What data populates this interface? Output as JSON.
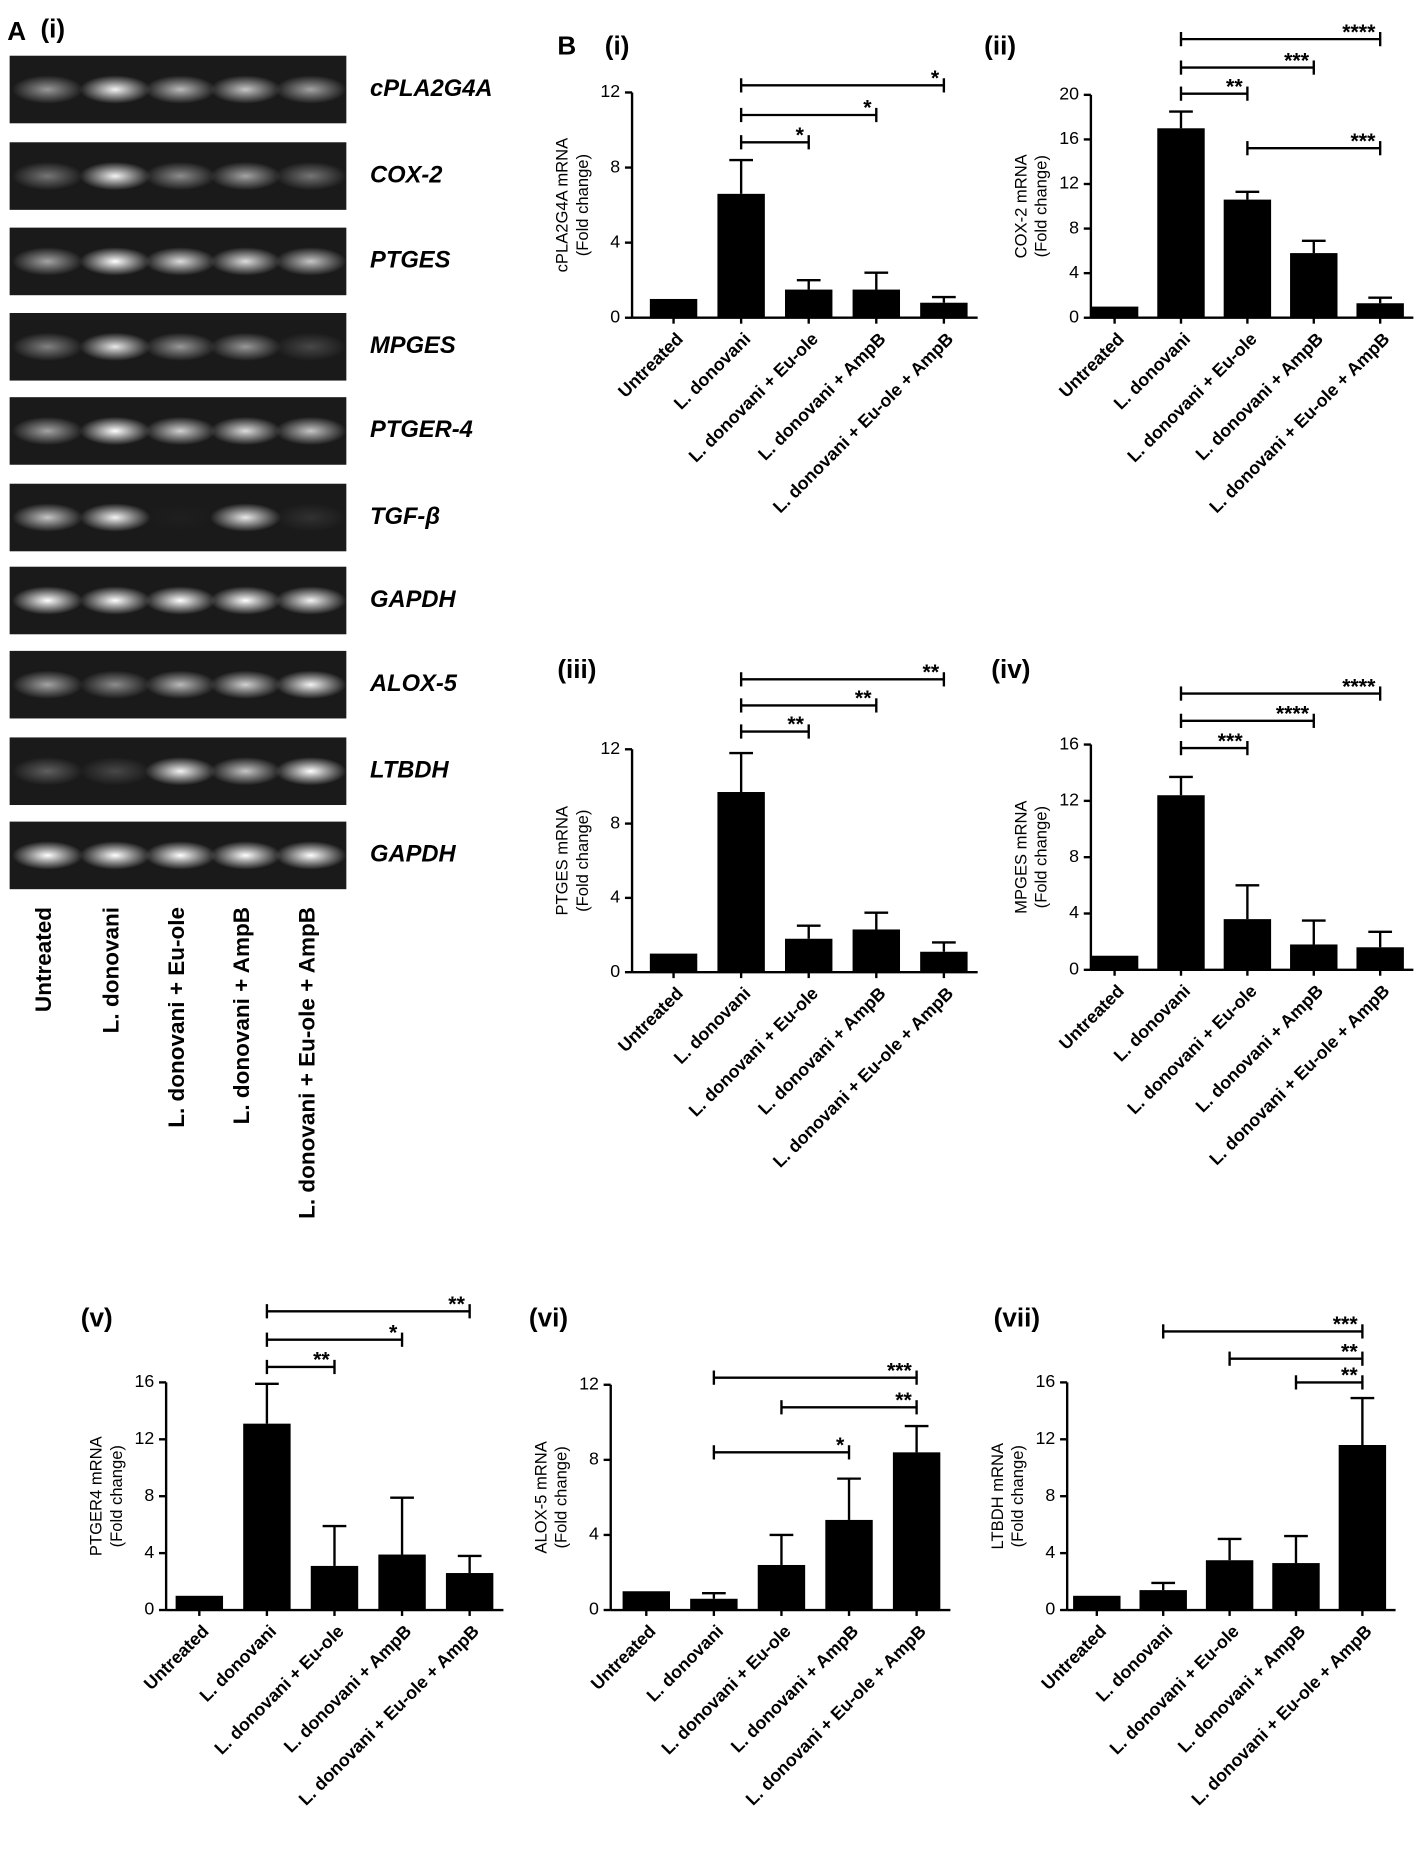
{
  "gel": {
    "panel": "A",
    "label": "(i)",
    "genes": [
      "cPLA2G4A",
      "COX-2",
      "PTGES",
      "MPGES",
      "PTGER-4",
      "TGF-β",
      "GAPDH",
      "ALOX-5",
      "LTBDH",
      "GAPDH"
    ],
    "lanes": [
      "Untreated",
      "L. donovani",
      "L. donovani + Eu-ole",
      "L. donovani + AmpB",
      "L. donovani + Eu-ole + AmpB"
    ]
  },
  "panel_b": "B",
  "chart_data": [
    {
      "type": "bar",
      "label": "(i)",
      "ylabel": [
        "cPLA2G4A mRNA",
        "(Fold change)"
      ],
      "categories": [
        "Untreated",
        "L. donovani",
        "L. donovani + Eu-ole",
        "L. donovani + AmpB",
        "L. donovani + Eu-ole + AmpB"
      ],
      "values": [
        1,
        6.6,
        1.5,
        1.5,
        0.8
      ],
      "errors": [
        0,
        1.8,
        0.5,
        0.9,
        0.3
      ],
      "color": "#000000",
      "ylim": [
        0,
        12
      ],
      "yticks": [
        0,
        4,
        8,
        12
      ],
      "annotations": [
        {
          "from": "L. donovani",
          "to": "L. donovani + Eu-ole + AmpB",
          "label": "*"
        },
        {
          "from": "L. donovani",
          "to": "L. donovani + AmpB",
          "label": "*"
        },
        {
          "from": "L. donovani",
          "to": "L. donovani + Eu-ole",
          "label": "*"
        }
      ]
    },
    {
      "type": "bar",
      "label": "(ii)",
      "ylabel": [
        "COX-2 mRNA",
        "(Fold change)"
      ],
      "categories": [
        "Untreated",
        "L. donovani",
        "L. donovani + Eu-ole",
        "L. donovani + AmpB",
        "L. donovani + Eu-ole + AmpB"
      ],
      "values": [
        1,
        17,
        10.6,
        5.8,
        1.3
      ],
      "errors": [
        0,
        1.5,
        0.7,
        1.1,
        0.5
      ],
      "color": "#000000",
      "ylim": [
        0,
        20
      ],
      "yticks": [
        0,
        4,
        8,
        12,
        16,
        20
      ],
      "annotations": [
        {
          "from": "L. donovani",
          "to": "L. donovani + Eu-ole + AmpB",
          "label": "****"
        },
        {
          "from": "L. donovani",
          "to": "L. donovani + AmpB",
          "label": "***"
        },
        {
          "from": "L. donovani",
          "to": "L. donovani + Eu-ole",
          "label": "**"
        },
        {
          "from": "L. donovani + Eu-ole",
          "to": "L. donovani + Eu-ole + AmpB",
          "label": "***"
        }
      ]
    },
    {
      "type": "bar",
      "label": "(iii)",
      "ylabel": [
        "PTGES mRNA",
        "(Fold change)"
      ],
      "categories": [
        "Untreated",
        "L. donovani",
        "L. donovani + Eu-ole",
        "L. donovani + AmpB",
        "L. donovani + Eu-ole + AmpB"
      ],
      "values": [
        1,
        9.7,
        1.8,
        2.3,
        1.1
      ],
      "errors": [
        0,
        2.1,
        0.7,
        0.9,
        0.5
      ],
      "color": "#000000",
      "ylim": [
        0,
        12
      ],
      "yticks": [
        0,
        4,
        8,
        12
      ],
      "annotations": [
        {
          "from": "L. donovani",
          "to": "L. donovani + Eu-ole + AmpB",
          "label": "**"
        },
        {
          "from": "L. donovani",
          "to": "L. donovani + AmpB",
          "label": "**"
        },
        {
          "from": "L. donovani",
          "to": "L. donovani + Eu-ole",
          "label": "**"
        }
      ]
    },
    {
      "type": "bar",
      "label": "(iv)",
      "ylabel": [
        "MPGES mRNA",
        "(Fold change)"
      ],
      "categories": [
        "Untreated",
        "L. donovani",
        "L. donovani + Eu-ole",
        "L. donovani + AmpB",
        "L. donovani + Eu-ole + AmpB"
      ],
      "values": [
        1,
        12.4,
        3.6,
        1.8,
        1.6
      ],
      "errors": [
        0,
        1.3,
        2.4,
        1.7,
        1.1
      ],
      "color": "#000000",
      "ylim": [
        0,
        16
      ],
      "yticks": [
        0,
        4,
        8,
        12,
        16
      ],
      "annotations": [
        {
          "from": "L. donovani",
          "to": "L. donovani + Eu-ole + AmpB",
          "label": "****"
        },
        {
          "from": "L. donovani",
          "to": "L. donovani + AmpB",
          "label": "****"
        },
        {
          "from": "L. donovani",
          "to": "L. donovani + Eu-ole",
          "label": "***"
        }
      ]
    },
    {
      "type": "bar",
      "label": "(v)",
      "ylabel": [
        "PTGER4 mRNA",
        "(Fold change)"
      ],
      "categories": [
        "Untreated",
        "L. donovani",
        "L. donovani + Eu-ole",
        "L. donovani + AmpB",
        "L. donovani + Eu-ole + AmpB"
      ],
      "values": [
        1,
        13.1,
        3.1,
        3.9,
        2.6
      ],
      "errors": [
        0,
        2.8,
        2.8,
        4.0,
        1.2
      ],
      "color": "#000000",
      "ylim": [
        0,
        16
      ],
      "yticks": [
        0,
        4,
        8,
        12,
        16
      ],
      "annotations": [
        {
          "from": "L. donovani",
          "to": "L. donovani + Eu-ole + AmpB",
          "label": "**"
        },
        {
          "from": "L. donovani",
          "to": "L. donovani + AmpB",
          "label": "*"
        },
        {
          "from": "L. donovani",
          "to": "L. donovani + Eu-ole",
          "label": "**"
        }
      ]
    },
    {
      "type": "bar",
      "label": "(vi)",
      "ylabel": [
        "ALOX-5 mRNA",
        "(Fold change)"
      ],
      "categories": [
        "Untreated",
        "L. donovani",
        "L. donovani + Eu-ole",
        "L. donovani + AmpB",
        "L. donovani + Eu-ole + AmpB"
      ],
      "values": [
        1,
        0.6,
        2.4,
        4.8,
        8.4
      ],
      "errors": [
        0,
        0.3,
        1.6,
        2.2,
        1.4
      ],
      "color": "#000000",
      "ylim": [
        0,
        12
      ],
      "yticks": [
        0,
        4,
        8,
        12
      ],
      "annotations": [
        {
          "from": "L. donovani",
          "to": "L. donovani + Eu-ole + AmpB",
          "label": "***"
        },
        {
          "from": "L. donovani + Eu-ole",
          "to": "L. donovani + Eu-ole + AmpB",
          "label": "**"
        },
        {
          "from": "L. donovani",
          "to": "L. donovani + AmpB",
          "label": "*"
        }
      ]
    },
    {
      "type": "bar",
      "label": "(vii)",
      "ylabel": [
        "LTBDH mRNA",
        "(Fold change)"
      ],
      "categories": [
        "Untreated",
        "L. donovani",
        "L. donovani + Eu-ole",
        "L. donovani + AmpB",
        "L. donovani + Eu-ole + AmpB"
      ],
      "values": [
        1,
        1.4,
        3.5,
        3.3,
        11.6
      ],
      "errors": [
        0,
        0.5,
        1.5,
        1.9,
        3.3
      ],
      "color": "#000000",
      "ylim": [
        0,
        16
      ],
      "yticks": [
        0,
        4,
        8,
        12,
        16
      ],
      "annotations": [
        {
          "from": "L. donovani",
          "to": "L. donovani + Eu-ole + AmpB",
          "label": "***"
        },
        {
          "from": "L. donovani + Eu-ole",
          "to": "L. donovani + Eu-ole + AmpB",
          "label": "**"
        },
        {
          "from": "L. donovani + AmpB",
          "to": "L. donovani + Eu-ole + AmpB",
          "label": "**"
        }
      ]
    }
  ]
}
